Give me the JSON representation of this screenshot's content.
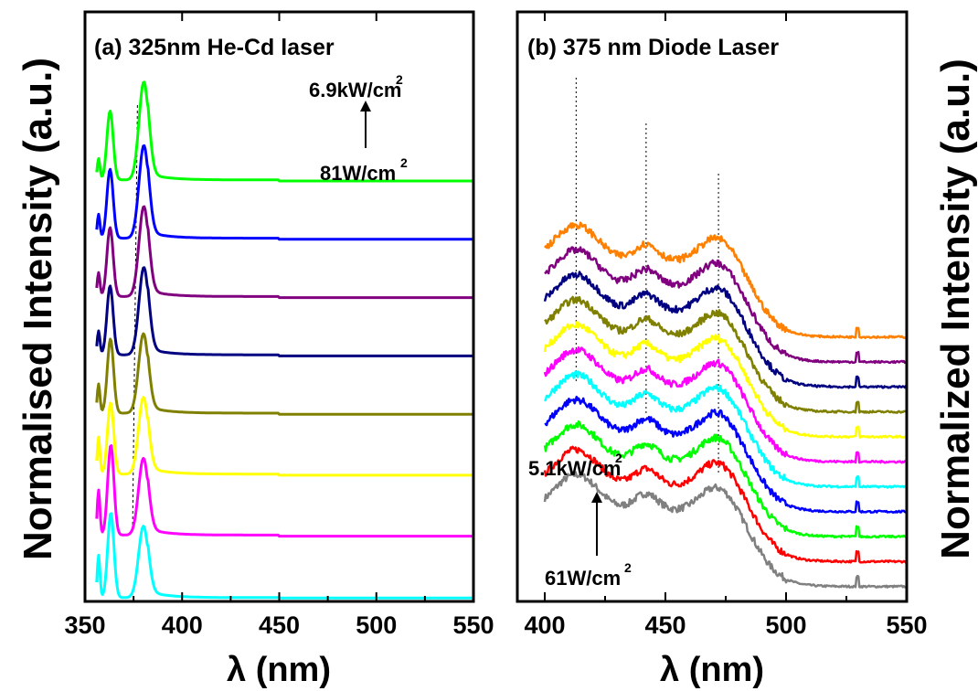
{
  "y_title_left": "Normalised Intensity (a.u.)",
  "y_title_right": "Normalized Intensity (a.u.)",
  "chart_data": [
    {
      "type": "line",
      "title": "(a) 325nm He-Cd laser",
      "xlabel": "λ (nm)",
      "ylabel": "Normalised Intensity (a.u.)",
      "xlim": [
        350,
        550
      ],
      "ylim": [
        0,
        10
      ],
      "xticks": [
        "350",
        "400",
        "450",
        "500",
        "550"
      ],
      "yticks_shown": false,
      "annotations": {
        "top": {
          "text": "6.9kW/cm",
          "sup": "2"
        },
        "bottom": {
          "text": "81W/cm",
          "sup": "2"
        },
        "arrow": "up"
      },
      "reference_lines_nm": [
        374.5,
        377
      ],
      "series": [
        {
          "color": "#00ffff",
          "offset": 0.0,
          "peaks": [
            [
              357.0,
              0.8,
              0.7
            ],
            [
              363.3,
              1.6,
              1.6
            ],
            [
              380.1,
              1.35,
              2.5
            ]
          ],
          "baseline": 0.02
        },
        {
          "color": "#ff00ff",
          "offset": 1.15,
          "peaks": [
            [
              357.0,
              0.85,
              0.7
            ],
            [
              363.3,
              1.7,
              1.6
            ],
            [
              380.1,
              1.45,
              2.5
            ]
          ],
          "baseline": 0.05
        },
        {
          "color": "#ffff00",
          "offset": 2.3,
          "peaks": [
            [
              357.0,
              0.7,
              0.7
            ],
            [
              363.2,
              1.35,
              1.6
            ],
            [
              380.1,
              1.45,
              2.5
            ]
          ],
          "baseline": 0.05
        },
        {
          "color": "#808000",
          "offset": 3.45,
          "peaks": [
            [
              357.0,
              0.55,
              0.7
            ],
            [
              363.1,
              1.4,
              1.6
            ],
            [
              380.1,
              1.5,
              2.5
            ]
          ],
          "baseline": 0.05
        },
        {
          "color": "#000080",
          "offset": 4.55,
          "peaks": [
            [
              357.0,
              0.45,
              0.7
            ],
            [
              362.9,
              1.3,
              1.6
            ],
            [
              380.3,
              1.65,
              2.5
            ]
          ],
          "baseline": 0.05
        },
        {
          "color": "#800080",
          "offset": 5.65,
          "peaks": [
            [
              357.0,
              0.45,
              0.7
            ],
            [
              362.9,
              1.3,
              1.6
            ],
            [
              380.3,
              1.7,
              2.5
            ]
          ],
          "baseline": 0.05
        },
        {
          "color": "#0000ff",
          "offset": 6.75,
          "peaks": [
            [
              357.0,
              0.45,
              0.7
            ],
            [
              362.9,
              1.3,
              1.6
            ],
            [
              380.3,
              1.75,
              2.5
            ]
          ],
          "baseline": 0.05
        },
        {
          "color": "#00ff00",
          "offset": 7.85,
          "peaks": [
            [
              357.0,
              0.4,
              0.7
            ],
            [
              362.9,
              1.3,
              1.6
            ],
            [
              380.3,
              1.85,
              2.5
            ]
          ],
          "baseline": 0.05
        }
      ]
    },
    {
      "type": "line",
      "title": "(b) 375 nm Diode Laser",
      "xlabel": "λ (nm)",
      "ylabel": "Normalized Intensity (a.u.)",
      "xlim": [
        400,
        550
      ],
      "ylim": [
        0,
        14
      ],
      "xticks": [
        "400",
        "450",
        "500",
        "550"
      ],
      "yticks_shown": false,
      "annotations": {
        "top": {
          "text": "5.1kW/cm",
          "sup": "2"
        },
        "bottom": {
          "text": "61W/cm",
          "sup": "2"
        },
        "arrow": "up"
      },
      "reference_lines_nm": [
        413,
        442,
        472
      ],
      "series": [
        {
          "color": "#808080",
          "offset": 0.0
        },
        {
          "color": "#ff0000",
          "offset": 0.78
        },
        {
          "color": "#00ff00",
          "offset": 1.56
        },
        {
          "color": "#0000ff",
          "offset": 2.34
        },
        {
          "color": "#00ffff",
          "offset": 3.12
        },
        {
          "color": "#ff00ff",
          "offset": 3.9
        },
        {
          "color": "#ffff00",
          "offset": 4.68
        },
        {
          "color": "#808000",
          "offset": 5.46
        },
        {
          "color": "#000080",
          "offset": 6.24
        },
        {
          "color": "#800080",
          "offset": 7.02
        },
        {
          "color": "#ff8000",
          "offset": 7.8
        }
      ]
    }
  ]
}
